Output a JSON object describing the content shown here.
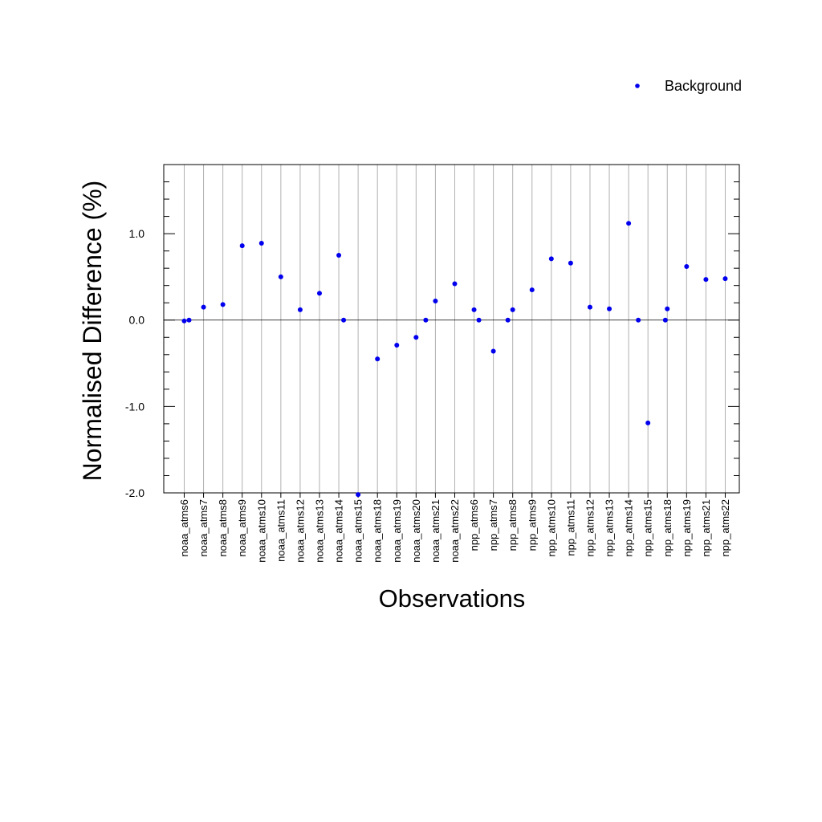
{
  "chart_data": {
    "type": "scatter",
    "xlabel": "Observations",
    "ylabel": "Normalised Difference (%)",
    "ylim": [
      -2.0,
      1.8
    ],
    "yticks": [
      "1.0",
      "0.0",
      "-1.0",
      "-2.0"
    ],
    "ytick_values": [
      1.0,
      0.0,
      -1.0,
      -2.0
    ],
    "grid": "vertical lines at each category",
    "legend_position": "top-right",
    "categories": [
      "noaa_atms6",
      "noaa_atms7",
      "noaa_atms8",
      "noaa_atms9",
      "noaa_atms10",
      "noaa_atms11",
      "noaa_atms12",
      "noaa_atms13",
      "noaa_atms14",
      "noaa_atms15",
      "noaa_atms18",
      "noaa_atms19",
      "noaa_atms20",
      "noaa_atms21",
      "noaa_atms22",
      "npp_atms6",
      "npp_atms7",
      "npp_atms8",
      "npp_atms9",
      "npp_atms10",
      "npp_atms11",
      "npp_atms12",
      "npp_atms13",
      "npp_atms14",
      "npp_atms15",
      "npp_atms18",
      "npp_atms19",
      "npp_atms21",
      "npp_atms22"
    ],
    "series": [
      {
        "name": "Background",
        "color": "#0000ee",
        "points": [
          {
            "x": 1.0,
            "y": -0.01
          },
          {
            "x": 1.25,
            "y": 0.0
          },
          {
            "x": 2.0,
            "y": 0.15
          },
          {
            "x": 3.0,
            "y": 0.18
          },
          {
            "x": 4.0,
            "y": 0.86
          },
          {
            "x": 5.0,
            "y": 0.89
          },
          {
            "x": 6.0,
            "y": 0.5
          },
          {
            "x": 7.0,
            "y": 0.12
          },
          {
            "x": 8.0,
            "y": 0.31
          },
          {
            "x": 9.0,
            "y": 0.75
          },
          {
            "x": 9.25,
            "y": 0.0
          },
          {
            "x": 10.0,
            "y": -2.02
          },
          {
            "x": 11.0,
            "y": -0.45
          },
          {
            "x": 12.0,
            "y": -0.29
          },
          {
            "x": 13.0,
            "y": -0.2
          },
          {
            "x": 13.5,
            "y": 0.0
          },
          {
            "x": 14.0,
            "y": 0.22
          },
          {
            "x": 15.0,
            "y": 0.42
          },
          {
            "x": 16.0,
            "y": 0.12
          },
          {
            "x": 16.25,
            "y": 0.0
          },
          {
            "x": 17.0,
            "y": -0.36
          },
          {
            "x": 17.75,
            "y": 0.0
          },
          {
            "x": 18.0,
            "y": 0.12
          },
          {
            "x": 19.0,
            "y": 0.35
          },
          {
            "x": 20.0,
            "y": 0.71
          },
          {
            "x": 21.0,
            "y": 0.66
          },
          {
            "x": 22.0,
            "y": 0.15
          },
          {
            "x": 23.0,
            "y": 0.13
          },
          {
            "x": 24.0,
            "y": 1.12
          },
          {
            "x": 24.5,
            "y": 0.0
          },
          {
            "x": 25.0,
            "y": -1.19
          },
          {
            "x": 25.9,
            "y": 0.0
          },
          {
            "x": 26.0,
            "y": 0.13
          },
          {
            "x": 27.0,
            "y": 0.62
          },
          {
            "x": 28.0,
            "y": 0.47
          },
          {
            "x": 29.0,
            "y": 0.48
          }
        ]
      }
    ]
  }
}
